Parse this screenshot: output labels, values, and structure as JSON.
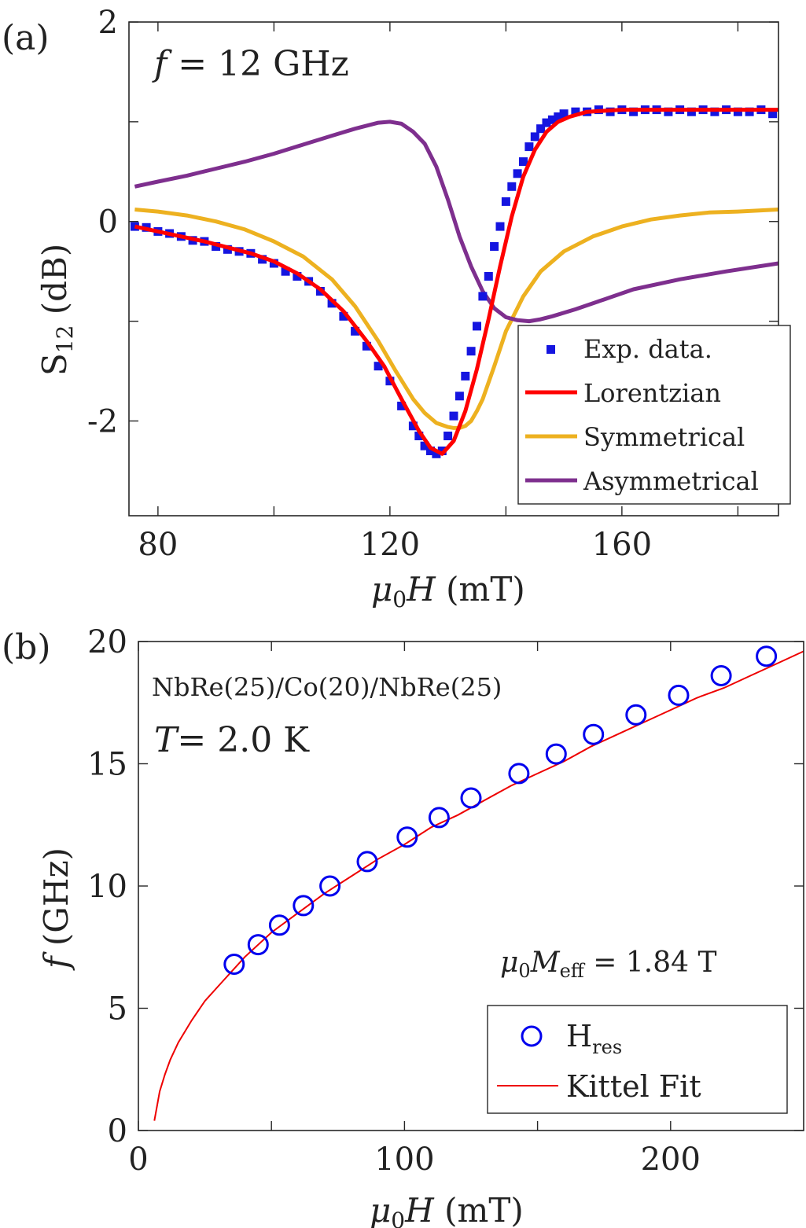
{
  "chart_data": [
    {
      "type": "line",
      "panel_label": "(a)",
      "annotation": {
        "prefix": "f",
        "rest": " = 12 GHz"
      },
      "xlabel": {
        "main": "μ",
        "sub": "0",
        "tail": "H",
        "unit": " (mT)"
      },
      "ylabel": {
        "main": "S",
        "sub": "12",
        "unit": " (dB)"
      },
      "xlim": [
        75,
        187
      ],
      "ylim": [
        -2.95,
        2
      ],
      "xticks": [
        80,
        120,
        160
      ],
      "xtick_labels": [
        "80",
        "120",
        "160"
      ],
      "xticks_minor": [
        100,
        140,
        180
      ],
      "yticks": [
        -2,
        0,
        2
      ],
      "ytick_labels": [
        "-2",
        "0",
        "2"
      ],
      "yticks_minor": [
        -1,
        1
      ],
      "legend_position": "bottom-right",
      "legend": [
        "Exp. data.",
        "Lorentzian",
        "Symmetrical",
        "Asymmetrical"
      ],
      "colors": {
        "data": "#1515e0",
        "lorentzian": "#ff0000",
        "symmetrical": "#edb120",
        "asymmetrical": "#7e2f8e"
      },
      "series": [
        {
          "name": "Exp. data.",
          "kind": "scatter",
          "x": [
            76,
            78,
            80,
            82,
            84,
            86,
            88,
            90,
            92,
            94,
            96,
            98,
            100,
            102,
            104,
            106,
            108,
            110,
            112,
            114,
            116,
            118,
            120,
            122,
            124,
            125,
            126,
            127,
            128,
            129,
            130,
            131,
            132,
            133,
            134,
            135,
            136,
            137,
            138,
            139,
            140,
            141,
            142,
            143,
            144,
            145,
            146,
            147,
            148,
            149,
            150,
            152,
            154,
            156,
            158,
            160,
            162,
            164,
            166,
            168,
            170,
            172,
            174,
            176,
            178,
            180,
            182,
            184,
            186
          ],
          "y": [
            -0.05,
            -0.06,
            -0.1,
            -0.12,
            -0.15,
            -0.19,
            -0.2,
            -0.25,
            -0.28,
            -0.3,
            -0.32,
            -0.38,
            -0.42,
            -0.5,
            -0.55,
            -0.6,
            -0.7,
            -0.82,
            -0.95,
            -1.1,
            -1.25,
            -1.45,
            -1.6,
            -1.85,
            -2.05,
            -2.15,
            -2.25,
            -2.3,
            -2.33,
            -2.3,
            -2.15,
            -1.95,
            -1.75,
            -1.55,
            -1.3,
            -1.05,
            -0.75,
            -0.55,
            -0.25,
            -0.05,
            0.2,
            0.35,
            0.48,
            0.6,
            0.75,
            0.85,
            0.93,
            0.99,
            1.02,
            1.05,
            1.08,
            1.1,
            1.1,
            1.12,
            1.1,
            1.12,
            1.1,
            1.12,
            1.12,
            1.1,
            1.12,
            1.1,
            1.12,
            1.1,
            1.12,
            1.1,
            1.1,
            1.12,
            1.08
          ]
        },
        {
          "name": "Lorentzian",
          "kind": "line",
          "x": [
            76,
            80,
            84,
            88,
            92,
            96,
            100,
            104,
            108,
            112,
            116,
            119,
            122,
            125,
            127,
            129,
            131,
            133,
            135,
            137,
            139,
            141,
            143,
            145,
            147,
            149,
            151,
            154,
            157,
            160,
            165,
            170,
            175,
            180,
            187
          ],
          "y": [
            -0.05,
            -0.1,
            -0.15,
            -0.2,
            -0.26,
            -0.32,
            -0.4,
            -0.52,
            -0.68,
            -0.9,
            -1.2,
            -1.45,
            -1.78,
            -2.1,
            -2.27,
            -2.33,
            -2.2,
            -1.9,
            -1.48,
            -0.98,
            -0.45,
            0.05,
            0.45,
            0.72,
            0.9,
            1.0,
            1.05,
            1.1,
            1.11,
            1.12,
            1.12,
            1.12,
            1.12,
            1.12,
            1.12
          ]
        },
        {
          "name": "Symmetrical",
          "kind": "line",
          "x": [
            76,
            80,
            85,
            90,
            95,
            100,
            105,
            110,
            114,
            118,
            121,
            124,
            126,
            128,
            130,
            131,
            132,
            133,
            134,
            135,
            136,
            138,
            140,
            143,
            146,
            150,
            155,
            160,
            165,
            170,
            175,
            180,
            187
          ],
          "y": [
            0.12,
            0.1,
            0.06,
            0.0,
            -0.08,
            -0.2,
            -0.35,
            -0.58,
            -0.85,
            -1.2,
            -1.5,
            -1.78,
            -1.92,
            -2.02,
            -2.06,
            -2.07,
            -2.07,
            -2.05,
            -2.0,
            -1.9,
            -1.78,
            -1.45,
            -1.1,
            -0.75,
            -0.5,
            -0.3,
            -0.15,
            -0.05,
            0.02,
            0.06,
            0.09,
            0.1,
            0.12
          ]
        },
        {
          "name": "Asymmetrical",
          "kind": "line",
          "x": [
            76,
            80,
            85,
            90,
            95,
            100,
            105,
            110,
            114,
            118,
            120,
            122,
            124,
            126,
            128,
            130,
            132,
            134,
            136,
            138,
            140,
            142,
            144,
            146,
            148,
            152,
            157,
            162,
            170,
            178,
            187
          ],
          "y": [
            0.35,
            0.4,
            0.46,
            0.53,
            0.6,
            0.68,
            0.77,
            0.86,
            0.93,
            0.99,
            1.0,
            0.98,
            0.9,
            0.78,
            0.55,
            0.22,
            -0.15,
            -0.45,
            -0.7,
            -0.87,
            -0.96,
            -0.99,
            -1.0,
            -0.98,
            -0.95,
            -0.88,
            -0.78,
            -0.68,
            -0.58,
            -0.5,
            -0.42
          ]
        }
      ]
    },
    {
      "type": "scatter",
      "panel_label": "(b)",
      "annotation_sample": "NbRe(25)/Co(20)/NbRe(25)",
      "annotation_temp": {
        "prefix": "T",
        "rest": "= 2.0 K"
      },
      "annotation_meff": {
        "mu": "μ",
        "sub0": "0",
        "M": "M",
        "subeff": "eff",
        "rest": " = 1.84 T"
      },
      "xlabel": {
        "main": "μ",
        "sub": "0",
        "tail": "H",
        "unit": " (mT)"
      },
      "ylabel": {
        "main": "f",
        "unit": " (GHz)"
      },
      "xlim": [
        0,
        250
      ],
      "ylim": [
        0,
        20
      ],
      "xticks": [
        0,
        100,
        200
      ],
      "xtick_labels": [
        "0",
        "100",
        "200"
      ],
      "xticks_minor": [
        50,
        150
      ],
      "yticks": [
        0,
        5,
        10,
        15,
        20
      ],
      "ytick_labels": [
        "0",
        "5",
        "10",
        "15",
        "20"
      ],
      "legend_position": "bottom-right",
      "legend": [
        {
          "main": "H",
          "sub": "res"
        },
        {
          "main": "Kittel Fit",
          "sub": ""
        }
      ],
      "colors": {
        "data": "#0000ee",
        "fit": "#ee0000"
      },
      "series": [
        {
          "name": "H",
          "kind": "scatter",
          "x": [
            36,
            45,
            53,
            62,
            72,
            86,
            101,
            113,
            125,
            143,
            157,
            171,
            187,
            203,
            219,
            236
          ],
          "y": [
            6.8,
            7.6,
            8.4,
            9.2,
            10.0,
            11.0,
            12.0,
            12.8,
            13.6,
            14.6,
            15.4,
            16.2,
            17.0,
            17.8,
            18.6,
            19.4
          ]
        },
        {
          "name": "Kittel Fit",
          "kind": "line",
          "x": [
            6,
            7,
            8,
            10,
            12,
            15,
            20,
            25,
            30,
            40,
            50,
            60,
            70,
            80,
            90,
            100,
            110,
            120,
            130,
            140,
            150,
            160,
            170,
            180,
            190,
            200,
            210,
            220,
            230,
            240,
            250
          ],
          "y": [
            0.4,
            1.0,
            1.6,
            2.3,
            2.9,
            3.6,
            4.5,
            5.3,
            5.9,
            7.1,
            8.1,
            8.9,
            9.7,
            10.4,
            11.1,
            11.7,
            12.4,
            12.9,
            13.5,
            14.1,
            14.6,
            15.1,
            15.7,
            16.2,
            16.7,
            17.2,
            17.7,
            18.1,
            18.6,
            19.1,
            19.6
          ]
        }
      ]
    }
  ]
}
